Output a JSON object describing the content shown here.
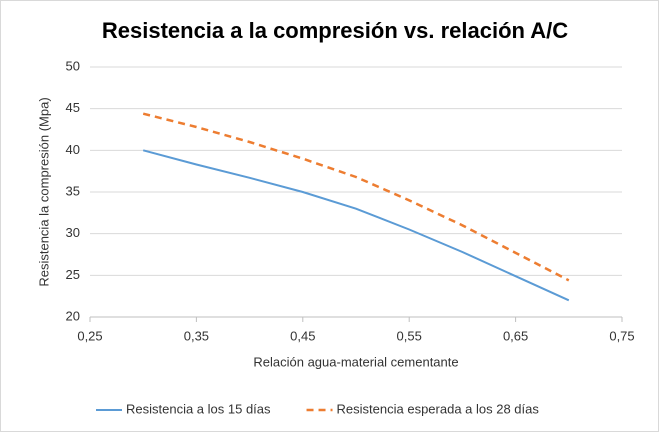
{
  "chart_data": {
    "type": "line",
    "title": "Resistencia a la compresión vs. relación A/C",
    "x_label": "Relación agua-material cementante",
    "y_label": "Resistencia la compresión (Mpa)",
    "x": [
      0.3,
      0.35,
      0.4,
      0.45,
      0.5,
      0.55,
      0.6,
      0.65,
      0.7
    ],
    "series": [
      {
        "name": "Resistencia a los 15 días",
        "color": "#5b9bd5",
        "dash": false,
        "values": [
          40,
          38.3,
          36.7,
          35,
          33,
          30.5,
          27.8,
          24.9,
          22
        ]
      },
      {
        "name": "Resistencia esperada a los 28 días",
        "color": "#ed7d31",
        "dash": true,
        "values": [
          44.4,
          42.8,
          41,
          39,
          36.8,
          34,
          31,
          27.7,
          24.4
        ]
      }
    ],
    "xlim": [
      0.25,
      0.75
    ],
    "xticks": [
      {
        "value": 0.25,
        "label": "0,25"
      },
      {
        "value": 0.35,
        "label": "0,35"
      },
      {
        "value": 0.45,
        "label": "0,45"
      },
      {
        "value": 0.55,
        "label": "0,55"
      },
      {
        "value": 0.65,
        "label": "0,65"
      },
      {
        "value": 0.75,
        "label": "0,75"
      }
    ],
    "ylim": [
      20,
      50
    ],
    "yticks": [
      20,
      25,
      30,
      35,
      40,
      45,
      50
    ],
    "grid": true,
    "legend": "bottom"
  }
}
